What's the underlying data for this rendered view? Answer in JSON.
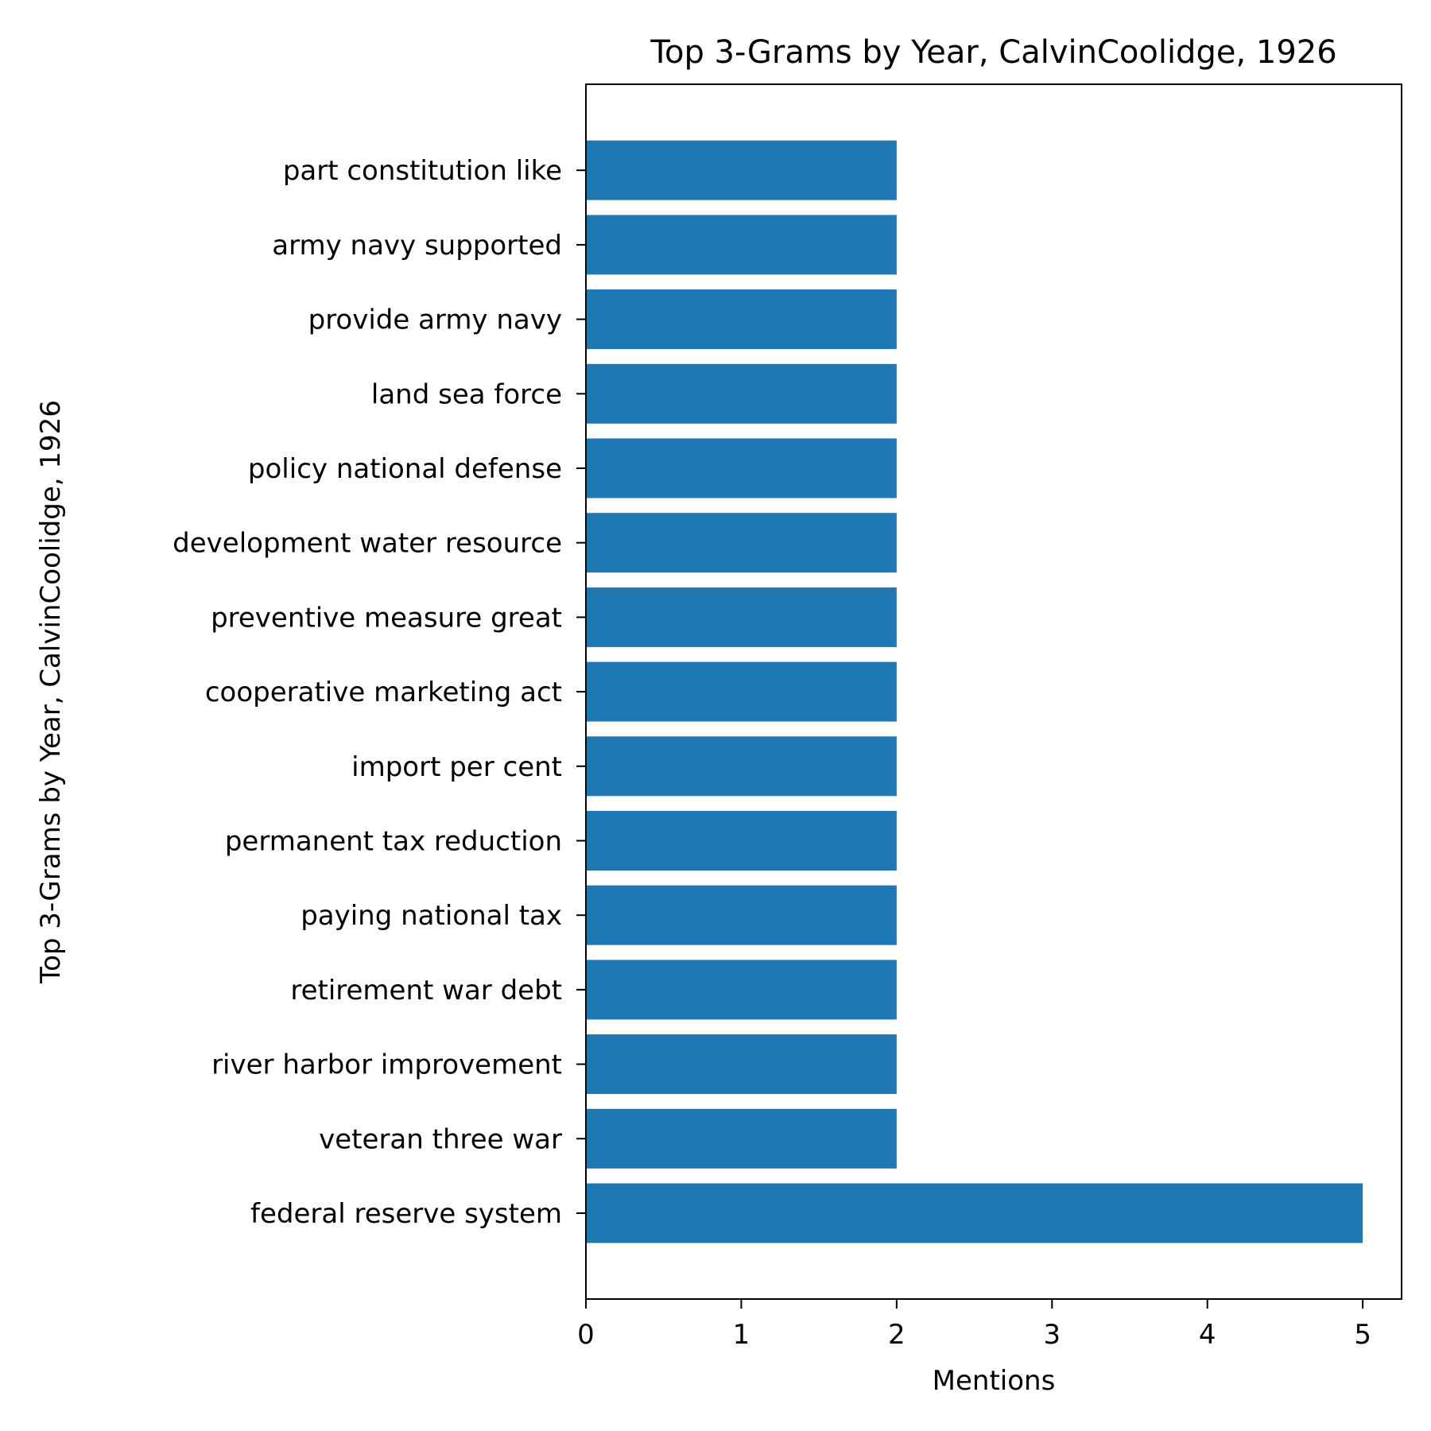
{
  "chart_data": {
    "type": "bar",
    "orientation": "horizontal",
    "title": "Top 3-Grams by Year, CalvinCoolidge, 1926",
    "xlabel": "Mentions",
    "ylabel": "Top 3-Grams by Year, CalvinCoolidge, 1926",
    "categories": [
      "federal reserve system",
      "veteran three war",
      "river harbor improvement",
      "retirement war debt",
      "paying national tax",
      "permanent tax reduction",
      "import per cent",
      "cooperative marketing act",
      "preventive measure great",
      "development water resource",
      "policy national defense",
      "land sea force",
      "provide army navy",
      "army navy supported",
      "part constitution like"
    ],
    "values": [
      5,
      2,
      2,
      2,
      2,
      2,
      2,
      2,
      2,
      2,
      2,
      2,
      2,
      2,
      2
    ],
    "xlim": [
      0,
      5.25
    ],
    "xticks": [
      0,
      1,
      2,
      3,
      4,
      5
    ],
    "bar_color": "#1f77b4",
    "grid": false,
    "legend": "none"
  }
}
